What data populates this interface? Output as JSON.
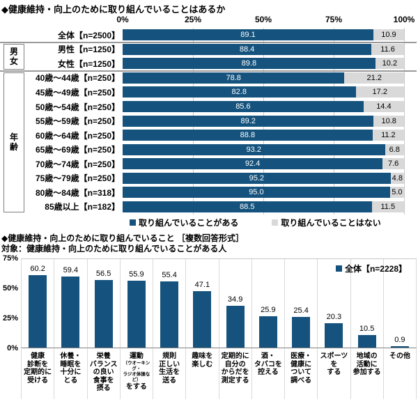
{
  "colors": {
    "bar_blue": "#15537e",
    "bar_gray": "#d9d9d9",
    "gridline": "#c9c9c9"
  },
  "chart_data": [
    {
      "type": "bar",
      "orientation": "horizontal",
      "stacked": true,
      "title": "◆健康維持・向上のために取り組んでいることはあるか",
      "xlim": [
        0,
        100
      ],
      "x_ticks": [
        "0%",
        "25%",
        "50%",
        "75%",
        "100%"
      ],
      "categories": [
        "全体【n=2500】",
        "男性【n=1250】",
        "女性【n=1250】",
        "40歳～44歳【n=250】",
        "45歳～49歳【n=250】",
        "50歳～54歳【n=250】",
        "55歳～59歳【n=250】",
        "60歳～64歳【n=250】",
        "65歳～69歳【n=250】",
        "70歳～74歳【n=250】",
        "75歳～79歳【n=250】",
        "80歳～84歳【n=318】",
        "85歳以上【n=182】"
      ],
      "series": [
        {
          "name": "取り組んでいることがある",
          "color": "#15537e",
          "values": [
            89.1,
            88.4,
            89.8,
            78.8,
            82.8,
            85.6,
            89.2,
            88.8,
            93.2,
            92.4,
            95.2,
            95.0,
            88.5
          ]
        },
        {
          "name": "取り組んでいることはない",
          "color": "#d9d9d9",
          "values": [
            10.9,
            11.6,
            10.2,
            21.2,
            17.2,
            14.4,
            10.8,
            11.2,
            6.8,
            7.6,
            4.8,
            5.0,
            11.5
          ]
        }
      ],
      "row_groups": [
        {
          "label": [
            "男",
            "女"
          ],
          "start": 1,
          "end": 2
        },
        {
          "label": [
            "年",
            "齢"
          ],
          "start": 3,
          "end": 12
        }
      ],
      "legend_position": "bottom"
    },
    {
      "type": "bar",
      "orientation": "vertical",
      "title": "◆健康維持・向上のために取り組んでいること ［複数回答形式］",
      "subtitle": "対象：健康維持・向上のために取り組んでいることがある人",
      "ylim": [
        0,
        75
      ],
      "y_ticks": [
        "75%",
        "50%",
        "25%",
        "0%"
      ],
      "legend_label": "全体【n=2228】",
      "bar_color": "#15537e",
      "categories": [
        "健康診断を定期的に受ける",
        "休養・睡眠を十分にとる",
        "栄養バランスの良い食事を摂る",
        "運動（ウオーキング・ラジオ体操など）をする",
        "規則正しい生活を送る",
        "趣味を楽しむ",
        "定期的に自分のからだを測定する",
        "酒・タバコを控える",
        "医療・健康について調べる",
        "スポーツをする",
        "地域の活動に参加する",
        "その他"
      ],
      "category_lines": [
        [
          "健康",
          "診断を",
          "定期的に",
          "受ける"
        ],
        [
          "休養・",
          "睡眠を",
          "十分に",
          "とる"
        ],
        [
          "栄養",
          "バランス",
          "の良い",
          "食事を",
          "摂る"
        ],
        [
          "運動",
          "（ウオーキング・",
          "ラジオ体操など）",
          "をする"
        ],
        [
          "規則",
          "正しい",
          "生活を",
          "送る"
        ],
        [
          "趣味を",
          "楽しむ"
        ],
        [
          "定期的に",
          "自分の",
          "からだを",
          "測定する"
        ],
        [
          "酒・",
          "タバコを",
          "控える"
        ],
        [
          "医療・",
          "健康に",
          "ついて",
          "調べる"
        ],
        [
          "スポーツを",
          "する"
        ],
        [
          "地域の",
          "活動に",
          "参加する"
        ],
        [
          "その他"
        ]
      ],
      "values": [
        60.2,
        59.4,
        56.5,
        55.9,
        55.4,
        47.1,
        34.9,
        25.9,
        25.4,
        20.3,
        10.5,
        0.9
      ]
    }
  ]
}
